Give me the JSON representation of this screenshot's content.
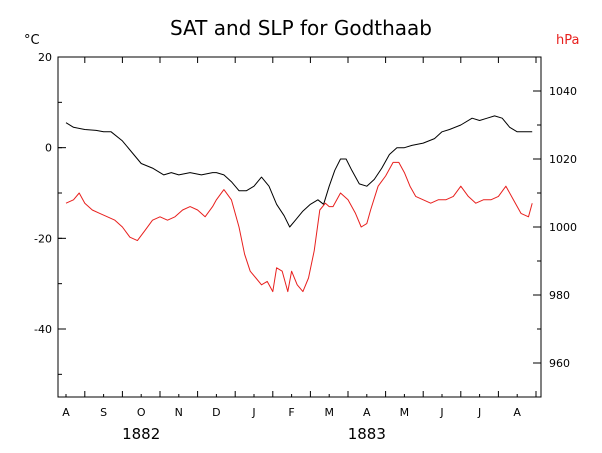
{
  "chart_data": {
    "type": "line",
    "title": "SAT and SLP for Godthaab",
    "left_axis": {
      "unit": "°C",
      "ylim": [
        -55,
        20
      ],
      "ticks": [
        20,
        0,
        -20,
        -40
      ]
    },
    "right_axis": {
      "unit": "hPa",
      "ylim": [
        950,
        1050
      ],
      "ticks": [
        1040,
        1020,
        1000,
        980,
        960
      ],
      "color": "#e8201e"
    },
    "x_axis": {
      "month_ticks": [
        "A",
        "S",
        "O",
        "N",
        "D",
        "J",
        "F",
        "M",
        "A",
        "M",
        "J",
        "J",
        "A"
      ],
      "years": [
        {
          "label": "1882",
          "month_center_index": 2
        },
        {
          "label": "1883",
          "month_center_index": 8
        }
      ]
    },
    "series": [
      {
        "axis": "left",
        "color": "#000000",
        "x": [
          0.0,
          0.2,
          0.5,
          0.8,
          1.0,
          1.2,
          1.5,
          1.8,
          2.0,
          2.3,
          2.6,
          2.8,
          3.0,
          3.3,
          3.6,
          3.9,
          4.0,
          4.2,
          4.4,
          4.6,
          4.8,
          5.0,
          5.2,
          5.4,
          5.6,
          5.8,
          5.95,
          6.1,
          6.3,
          6.5,
          6.7,
          6.85,
          7.0,
          7.15,
          7.3,
          7.45,
          7.6,
          7.8,
          8.0,
          8.2,
          8.4,
          8.6,
          8.8,
          9.0,
          9.2,
          9.5,
          9.8,
          10.0,
          10.2,
          10.5,
          10.8,
          11.0,
          11.2,
          11.4,
          11.6,
          11.8,
          12.0,
          12.2,
          12.4
        ],
        "y": [
          5.5,
          4.5,
          4.0,
          3.8,
          3.5,
          3.5,
          1.5,
          -1.5,
          -3.5,
          -4.5,
          -6.0,
          -5.5,
          -6.0,
          -5.5,
          -6.0,
          -5.5,
          -5.5,
          -6.0,
          -7.5,
          -9.5,
          -9.5,
          -8.5,
          -6.5,
          -8.5,
          -12.5,
          -15.0,
          -17.5,
          -16.0,
          -14.0,
          -12.5,
          -11.5,
          -12.5,
          -8.5,
          -5.0,
          -2.5,
          -2.5,
          -5.0,
          -8.0,
          -8.5,
          -7.0,
          -4.5,
          -1.5,
          0.0,
          0.0,
          0.5,
          1.0,
          2.0,
          3.5,
          4.0,
          5.0,
          6.5,
          6.0,
          6.5,
          7.0,
          6.5,
          4.5,
          3.5,
          3.5,
          3.5
        ]
      },
      {
        "axis": "right",
        "color": "#e8201e",
        "x": [
          0.0,
          0.2,
          0.35,
          0.5,
          0.7,
          0.9,
          1.1,
          1.3,
          1.5,
          1.7,
          1.9,
          2.1,
          2.3,
          2.5,
          2.7,
          2.9,
          3.1,
          3.3,
          3.5,
          3.7,
          3.9,
          4.0,
          4.2,
          4.4,
          4.6,
          4.75,
          4.9,
          5.05,
          5.2,
          5.35,
          5.5,
          5.6,
          5.75,
          5.9,
          6.0,
          6.15,
          6.3,
          6.45,
          6.6,
          6.75,
          6.9,
          7.0,
          7.1,
          7.3,
          7.5,
          7.7,
          7.85,
          8.0,
          8.1,
          8.3,
          8.5,
          8.7,
          8.85,
          9.0,
          9.15,
          9.3,
          9.5,
          9.7,
          9.9,
          10.1,
          10.3,
          10.5,
          10.7,
          10.9,
          11.1,
          11.3,
          11.5,
          11.7,
          11.9,
          12.1,
          12.3,
          12.4
        ],
        "y": [
          1007,
          1008,
          1010,
          1007,
          1005,
          1004,
          1003,
          1002,
          1000,
          997,
          996,
          999,
          1002,
          1003,
          1002,
          1003,
          1005,
          1006,
          1005,
          1003,
          1006,
          1008,
          1011,
          1008,
          1000,
          992,
          987,
          985,
          983,
          984,
          981,
          988,
          987,
          981,
          987,
          983,
          981,
          985,
          993,
          1005,
          1007,
          1006,
          1006,
          1010,
          1008,
          1004,
          1000,
          1001,
          1005,
          1012,
          1015,
          1019,
          1019,
          1016,
          1012,
          1009,
          1008,
          1007,
          1008,
          1008,
          1009,
          1012,
          1009,
          1007,
          1008,
          1008,
          1009,
          1012,
          1008,
          1004,
          1003,
          1007
        ]
      }
    ]
  }
}
